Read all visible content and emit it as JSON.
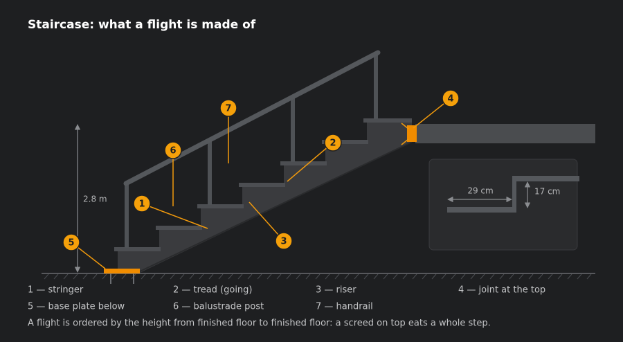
{
  "title": "Staircase: what a flight is made of",
  "callouts": [
    "1",
    "2",
    "3",
    "4",
    "5",
    "6",
    "7"
  ],
  "dimensions": {
    "height": "2.8 m",
    "going": "29 cm",
    "rise": "17 cm"
  },
  "legend": [
    "1 — stringer",
    "2 — tread (going)",
    "3 — riser",
    "4 — joint at the top",
    "5 — base plate below",
    "6 — balustrade post",
    "7 — handrail"
  ],
  "note": "A flight is ordered by the height from finished floor to finished floor: a screed on top eats a whole step."
}
